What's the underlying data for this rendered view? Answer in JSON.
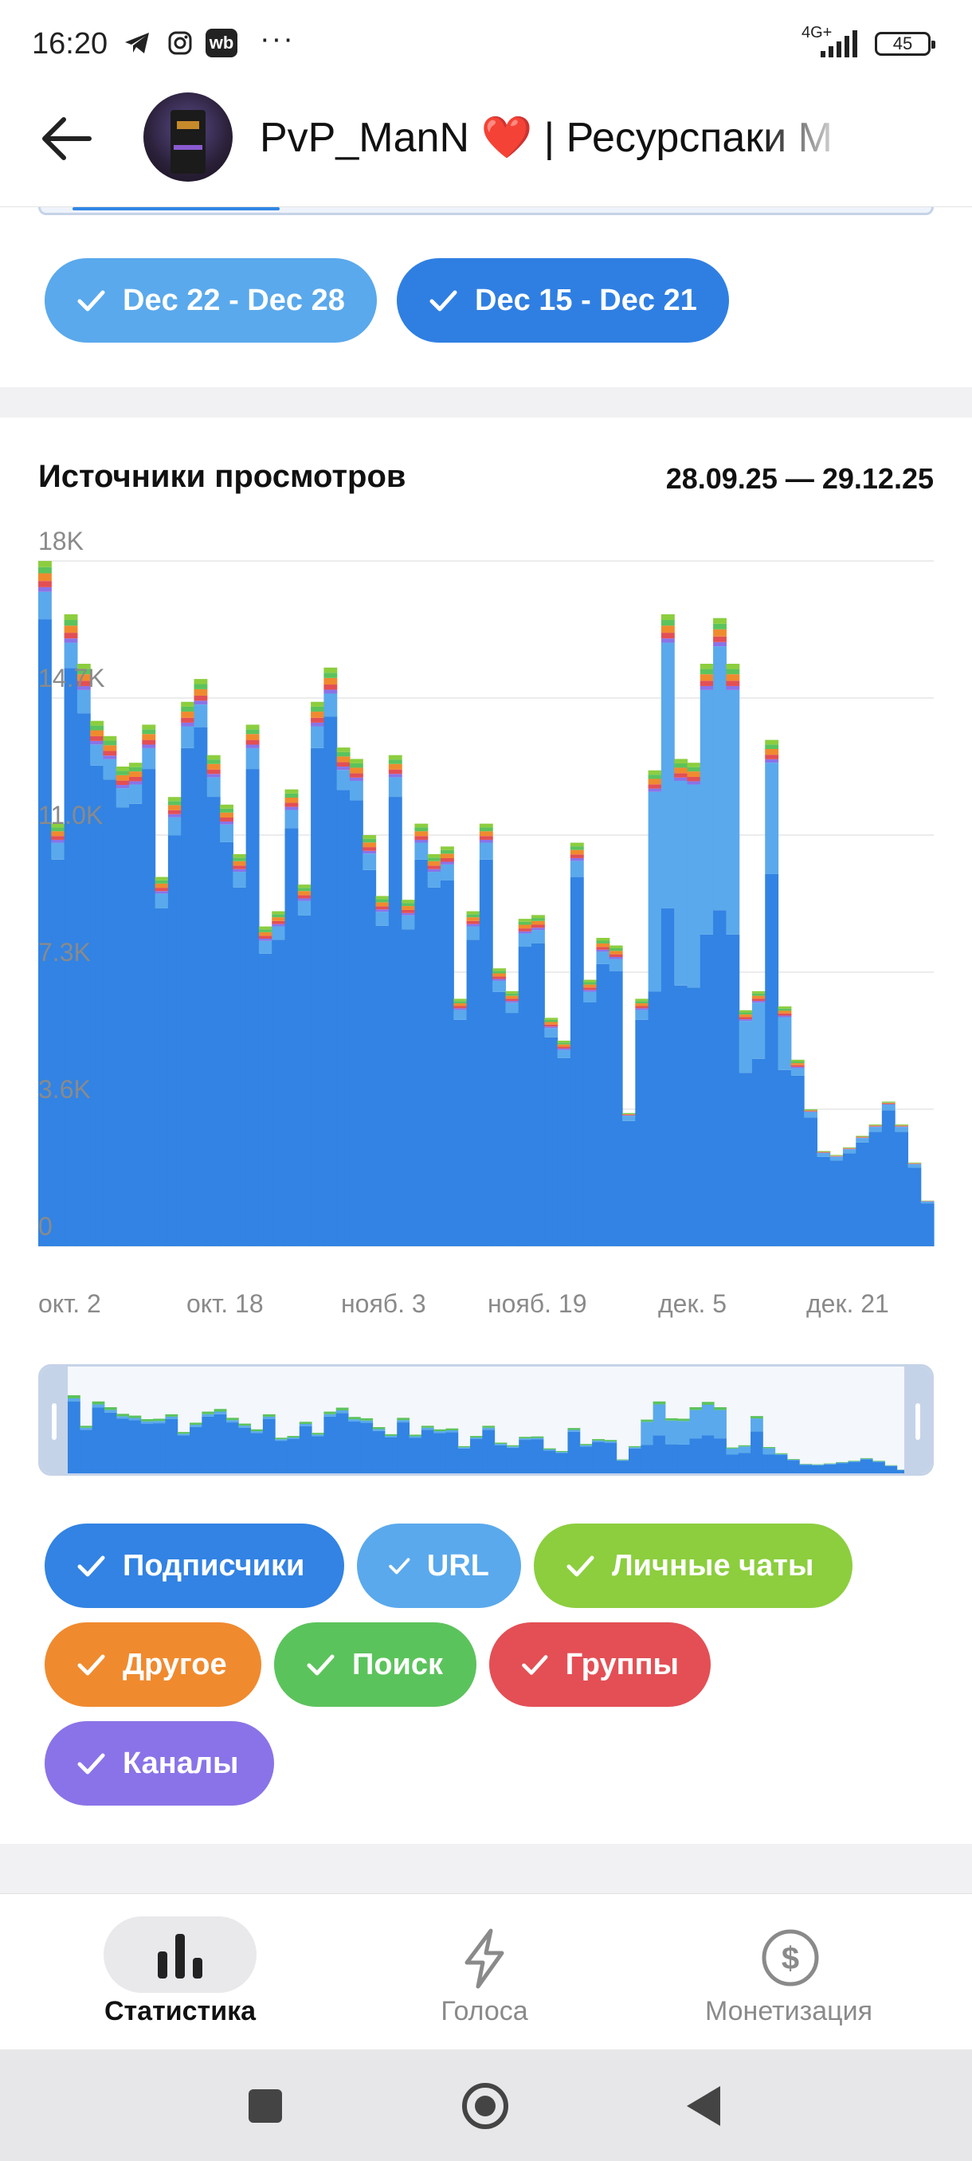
{
  "status_bar": {
    "time": "16:20",
    "network": "4G+",
    "battery": "45"
  },
  "header": {
    "channel_title": "PvP_ManN",
    "title_rest": " | Ресурспаки М"
  },
  "week_filters": [
    {
      "label": "Dec 22 - Dec 28",
      "color": "#5aa9ec"
    },
    {
      "label": "Dec 15 - Dec 21",
      "color": "#2f7fe2"
    }
  ],
  "views_sources": {
    "title": "Источники просмотров",
    "date_range": "28.09.25 — 29.12.25"
  },
  "chart_data": {
    "type": "bar",
    "stacked": true,
    "title": "Источники просмотров",
    "ylim": [
      0,
      18000
    ],
    "y_ticks": [
      "0",
      "3.6K",
      "7.3K",
      "11.0K",
      "14.7K",
      "18K"
    ],
    "x_tick_labels": [
      "окт. 2",
      "окт. 18",
      "нояб. 3",
      "нояб. 19",
      "дек. 5",
      "дек. 21"
    ],
    "grid": true,
    "series_colors": {
      "Подписчики": "#3283e3",
      "URL": "#5aa9ec",
      "Личные чаты": "#8cce3e",
      "Другое": "#f08a2e",
      "Поиск": "#5bc35c",
      "Группы": "#e34f55",
      "Каналы": "#8a73e8"
    },
    "totals": [
      18000,
      11100,
      16600,
      15300,
      13800,
      13400,
      12600,
      12700,
      13700,
      9700,
      11800,
      14300,
      14900,
      12900,
      11600,
      10300,
      13700,
      8400,
      8800,
      12000,
      9500,
      14300,
      15200,
      13100,
      12800,
      10800,
      9200,
      12900,
      9100,
      11100,
      10300,
      10500,
      6500,
      8800,
      11100,
      7300,
      6700,
      8600,
      8700,
      6000,
      5400,
      10600,
      7000,
      8100,
      7900,
      3500,
      6500,
      12500,
      16600,
      12800,
      12700,
      15300,
      16500,
      15300,
      6200,
      6700,
      13300,
      6300,
      4900,
      3600,
      2500,
      2400,
      2600,
      2900,
      3200,
      3800,
      3200,
      2200,
      1200
    ],
    "subscriber_share": "most of each bar; URL prominent around late Nov – early Dec"
  },
  "legend_chips": [
    {
      "label": "Подписчики",
      "color": "#3283e3"
    },
    {
      "label": "URL",
      "color": "#5aa9ec"
    },
    {
      "label": "Личные чаты",
      "color": "#8cce3e"
    },
    {
      "label": "Другое",
      "color": "#f08a2e"
    },
    {
      "label": "Поиск",
      "color": "#5bc35c"
    },
    {
      "label": "Группы",
      "color": "#e34f55"
    },
    {
      "label": "Каналы",
      "color": "#8a73e8"
    }
  ],
  "bottom_nav": [
    {
      "label": "Статистика",
      "icon": "bar-chart-icon",
      "active": true
    },
    {
      "label": "Голоса",
      "icon": "lightning-icon",
      "active": false
    },
    {
      "label": "Монетизация",
      "icon": "dollar-icon",
      "active": false
    }
  ]
}
